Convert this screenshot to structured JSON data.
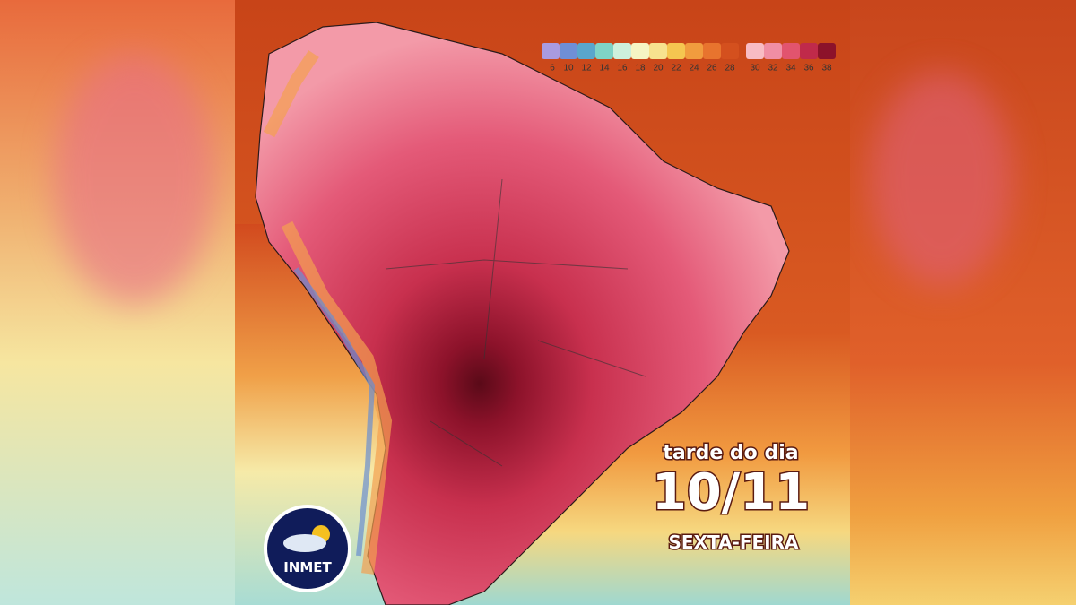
{
  "legend": {
    "items": [
      {
        "label": 6,
        "color": "#a99be0"
      },
      {
        "label": 10,
        "color": "#6f8fd6"
      },
      {
        "label": 12,
        "color": "#5aa6cc"
      },
      {
        "label": 14,
        "color": "#7fd3c6"
      },
      {
        "label": 16,
        "color": "#cdf0dc"
      },
      {
        "label": 18,
        "color": "#f6f5c4"
      },
      {
        "label": 20,
        "color": "#f7e28e"
      },
      {
        "label": 22,
        "color": "#f5c650"
      },
      {
        "label": 24,
        "color": "#f19c3e"
      },
      {
        "label": 26,
        "color": "#e8742e"
      },
      {
        "label": 28,
        "color": "#d4501e"
      },
      {
        "label": 30,
        "color": "#f8bcc4"
      },
      {
        "label": 32,
        "color": "#f08ea4"
      },
      {
        "label": 34,
        "color": "#e2546e"
      },
      {
        "label": 36,
        "color": "#c02a4a"
      },
      {
        "label": 38,
        "color": "#8c122a"
      }
    ]
  },
  "caption": {
    "line1": "tarde do dia",
    "date": "10/11",
    "weekday": "SEXTA-FEIRA"
  },
  "logo": {
    "text": "INMET"
  }
}
